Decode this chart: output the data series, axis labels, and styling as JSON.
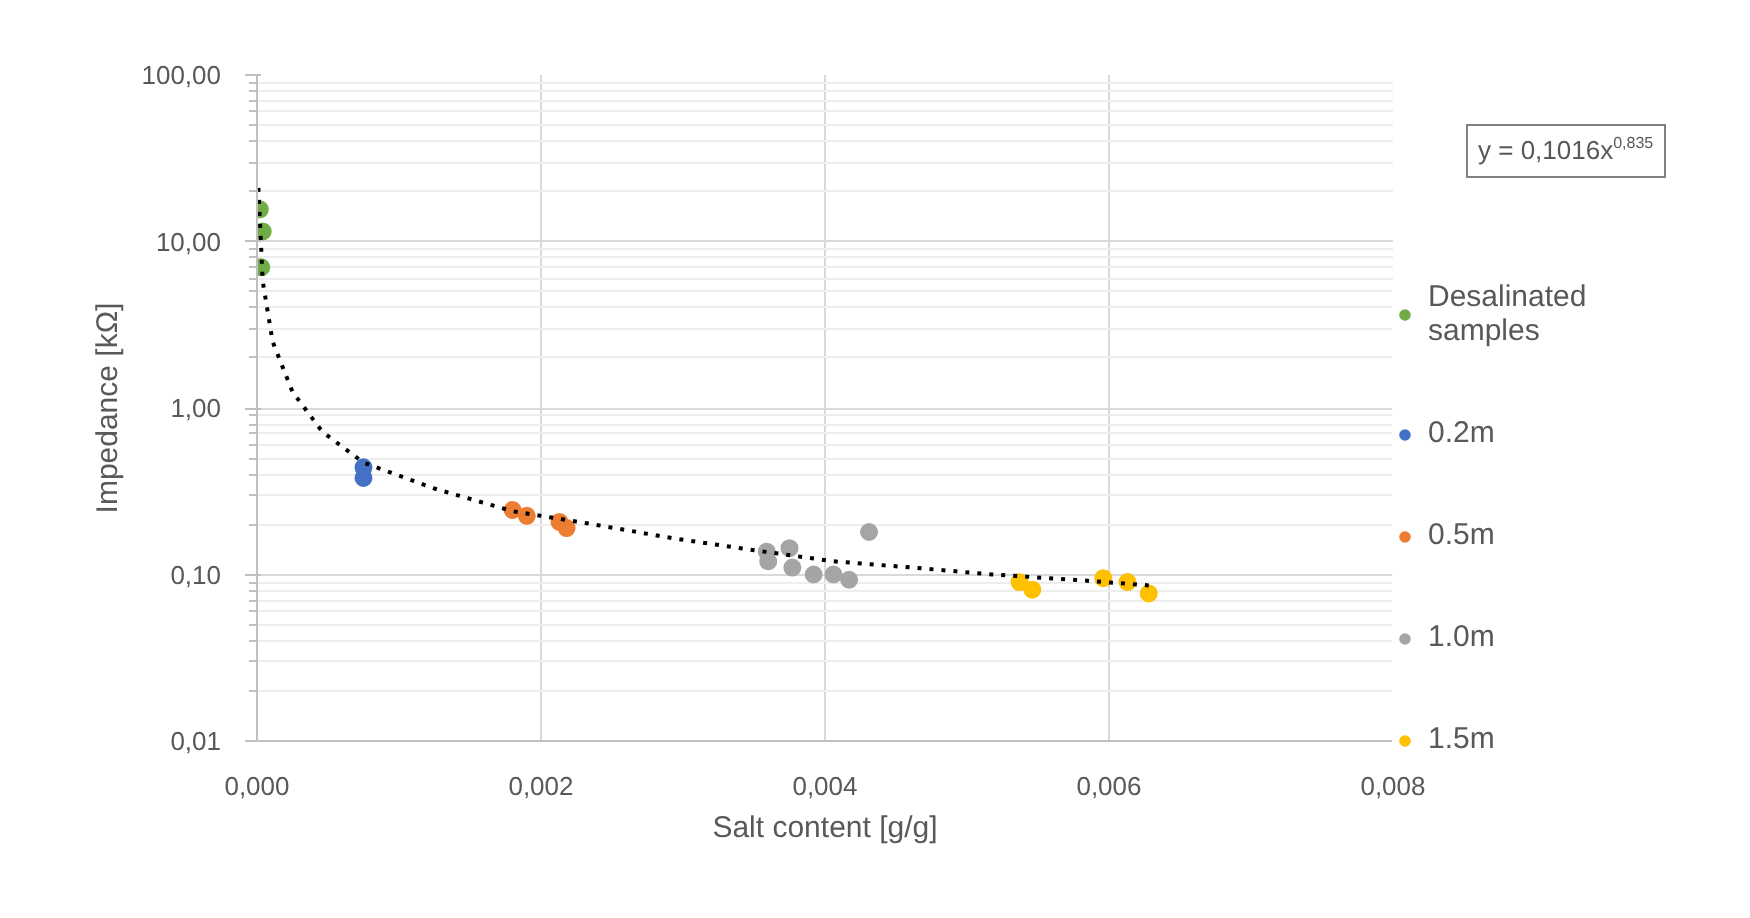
{
  "chart_data": {
    "type": "scatter",
    "xlabel": "Salt content [g/g]",
    "ylabel": "Impedance [kΩ]",
    "annotations": [
      "y = 0,1016x$^{0,835}$"
    ],
    "log": "y",
    "grid": true,
    "legend": "right",
    "marker": "circle",
    "xlim": [
      0,
      0.008
    ],
    "ylim": [
      0.01,
      100
    ],
    "xticks": [
      {
        "value": 0,
        "label": "0,000"
      },
      {
        "value": 0.002,
        "label": "0,002"
      },
      {
        "value": 0.004,
        "label": "0,004"
      },
      {
        "value": 0.006,
        "label": "0,006"
      },
      {
        "value": 0.008,
        "label": "0,008"
      }
    ],
    "yticks": [
      {
        "value": 0.01,
        "label": "0,01"
      },
      {
        "value": 0.1,
        "label": "0,10"
      },
      {
        "value": 1,
        "label": "1,00"
      },
      {
        "value": 10,
        "label": "10,00"
      },
      {
        "value": 100,
        "label": "100,00"
      }
    ],
    "series": [
      {
        "name": "Desalinated samples",
        "color": "#70ad47",
        "x": [
          2e-05,
          4e-05,
          3e-05
        ],
        "values": [
          15.6,
          11.5,
          7.0
        ]
      },
      {
        "name": "0.2m",
        "color": "#4472c4",
        "x": [
          0.00075,
          0.00075
        ],
        "values": [
          0.44,
          0.38
        ]
      },
      {
        "name": "0.5m",
        "color": "#ed7d31",
        "x": [
          0.0018,
          0.0019,
          0.00213,
          0.00218
        ],
        "values": [
          0.244,
          0.225,
          0.207,
          0.19
        ]
      },
      {
        "name": "1.0m",
        "color": "#a5a5a5",
        "x": [
          0.00359,
          0.00375,
          0.0036,
          0.00377,
          0.00392,
          0.00406,
          0.00417,
          0.00431
        ],
        "values": [
          0.137,
          0.144,
          0.12,
          0.11,
          0.1,
          0.1,
          0.093,
          0.18
        ]
      },
      {
        "name": "1.5m",
        "color": "#ffc000",
        "x": [
          0.00537,
          0.00546,
          0.00596,
          0.00613,
          0.00628
        ],
        "values": [
          0.09,
          0.081,
          0.095,
          0.09,
          0.077
        ]
      },
      {
        "type": "line",
        "color": "#000000",
        "line_style": "dotted",
        "marker": "none",
        "x": [
          1e-05,
          4e-05,
          0.00011,
          0.00025,
          0.00046,
          0.00075,
          0.00124,
          0.0018,
          0.00237,
          0.00293,
          0.0035,
          0.00406,
          0.00462,
          0.00518,
          0.00575,
          0.00628
        ],
        "values": [
          21,
          5.8,
          2.5,
          1.25,
          0.72,
          0.47,
          0.33,
          0.24,
          0.2,
          0.165,
          0.14,
          0.12,
          0.11,
          0.1,
          0.093,
          0.086
        ]
      }
    ]
  }
}
